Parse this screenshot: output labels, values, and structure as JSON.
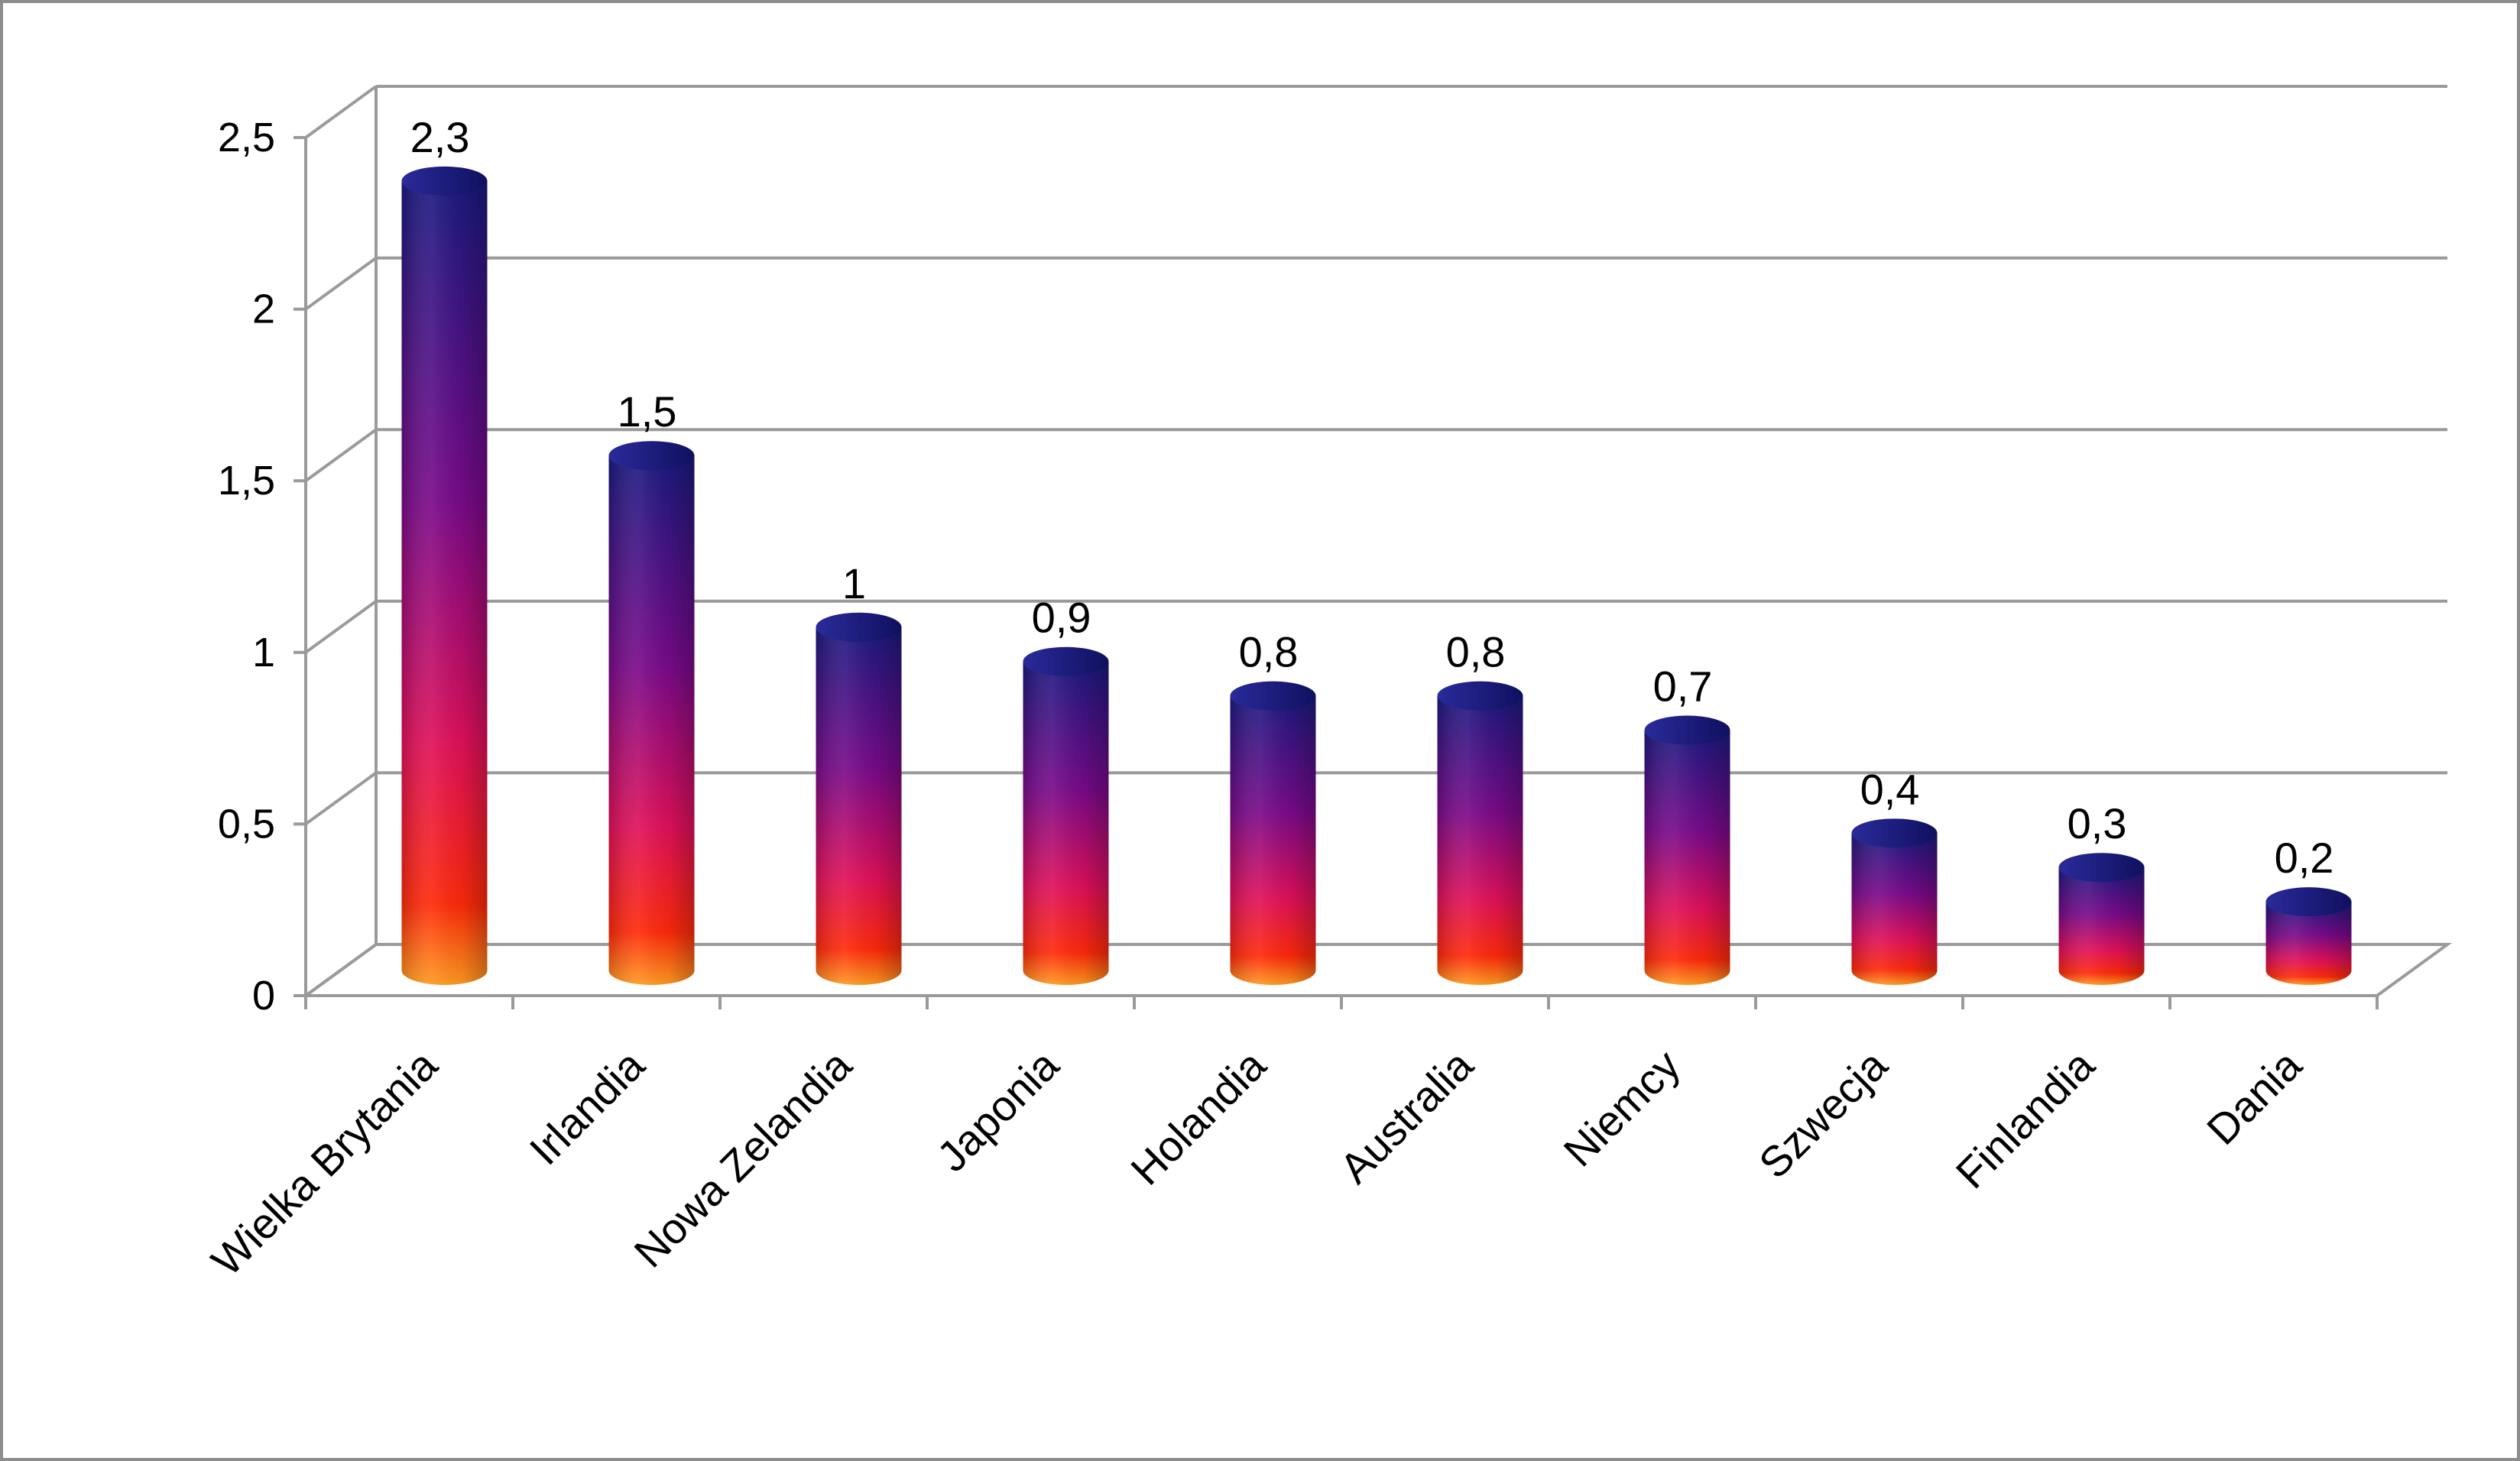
{
  "chart_data": {
    "type": "bar",
    "style": "3d-cylinder",
    "categories": [
      "Wielka Brytania",
      "Irlandia",
      "Nowa Zelandia",
      "Japonia",
      "Holandia",
      "Australia",
      "Niemcy",
      "Szwecja",
      "Finlandia",
      "Dania"
    ],
    "values": [
      2.3,
      1.5,
      1,
      0.9,
      0.8,
      0.8,
      0.7,
      0.4,
      0.3,
      0.2
    ],
    "data_labels": [
      "2,3",
      "1,5",
      "1",
      "0,9",
      "0,8",
      "0,8",
      "0,7",
      "0,4",
      "0,3",
      "0,2"
    ],
    "y_ticks": [
      0,
      0.5,
      1,
      1.5,
      2,
      2.5
    ],
    "y_tick_labels": [
      "0",
      "0,5",
      "1",
      "1,5",
      "2",
      "2,5"
    ],
    "ylim": [
      0,
      2.5
    ],
    "title": "",
    "xlabel": "",
    "ylabel": "",
    "grid": true,
    "legend": "none",
    "colors": {
      "bar_top": "#1a1a80",
      "bar_mid": "#7a0a8a",
      "bar_low": "#e0105a",
      "bar_base": "#ff2a0a",
      "bar_bottom": "#ff9a20",
      "grid": "#9a9a9a",
      "frame": "#8c8c8c"
    }
  }
}
